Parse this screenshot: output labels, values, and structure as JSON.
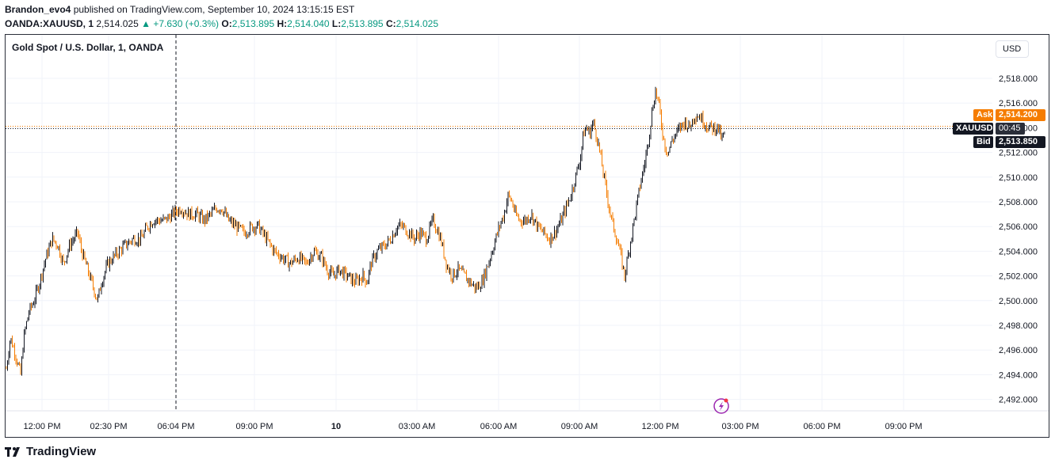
{
  "header": {
    "publisher": "Brandon_evo4",
    "published_text": " published on TradingView.com, September 10, 2024 13:15:15 EST",
    "symbol": "OANDA:XAUUSD, 1",
    "last": "2,514.025",
    "change": "+7.630 (+0.3%)",
    "o_label": "O:",
    "o": "2,513.895",
    "h_label": "H:",
    "h": "2,514.040",
    "l_label": "L:",
    "l": "2,513.895",
    "c_label": "C:",
    "c": "2,514.025"
  },
  "chart_title": "Gold Spot / U.S. Dollar, 1, OANDA",
  "currency_button": "USD",
  "tags": {
    "ask_label": "Ask",
    "ask_value": "2,514.200",
    "symbol_label": "XAUUSD",
    "countdown": "00:45",
    "bid_label": "Bid",
    "bid_value": "2,513.850"
  },
  "colors": {
    "up_candle": "#131722",
    "down_candle": "#f57c00",
    "ask": "#f57c00",
    "bid": "#131722",
    "grid": "#f0f3fa",
    "positive_change": "#089981"
  },
  "logo_text": "TradingView",
  "chart_data": {
    "type": "candlestick",
    "ylim": [
      2491,
      2519
    ],
    "y_ticks": [
      2492,
      2494,
      2496,
      2498,
      2500,
      2502,
      2504,
      2506,
      2508,
      2510,
      2512,
      2514,
      2516,
      2518
    ],
    "y_tick_labels": [
      "2,492.000",
      "2,494.000",
      "2,496.000",
      "2,498.000",
      "2,500.000",
      "2,502.000",
      "2,504.000",
      "2,506.000",
      "2,508.000",
      "2,510.000",
      "2,512.000",
      "2,514.000",
      "2,516.000",
      "2,518.000"
    ],
    "x_tick_labels": [
      "12:00 PM",
      "02:30 PM",
      "06:04 PM",
      "09:00 PM",
      "10",
      "03:00 AM",
      "06:00 AM",
      "09:00 AM",
      "12:00 PM",
      "03:00 PM",
      "06:00 PM",
      "09:00 PM"
    ],
    "crosshair_time": "06:04 PM",
    "current_price_line": 2514.025,
    "path": [
      [
        0,
        2494.5
      ],
      [
        5,
        2497
      ],
      [
        10,
        2496
      ],
      [
        18,
        2494
      ],
      [
        22,
        2497
      ],
      [
        28,
        2499
      ],
      [
        35,
        2500
      ],
      [
        42,
        2501.5
      ],
      [
        50,
        2503.5
      ],
      [
        58,
        2505
      ],
      [
        65,
        2504.5
      ],
      [
        72,
        2503
      ],
      [
        80,
        2504.5
      ],
      [
        90,
        2505.5
      ],
      [
        95,
        2504
      ],
      [
        100,
        2503
      ],
      [
        105,
        2502
      ],
      [
        110,
        2501
      ],
      [
        115,
        2500
      ],
      [
        120,
        2501.5
      ],
      [
        128,
        2503
      ],
      [
        135,
        2503.5
      ],
      [
        142,
        2504
      ],
      [
        150,
        2504.5
      ],
      [
        160,
        2505
      ],
      [
        170,
        2505
      ],
      [
        178,
        2506
      ],
      [
        185,
        2506.5
      ],
      [
        192,
        2506.5
      ],
      [
        200,
        2506.5
      ],
      [
        210,
        2507
      ],
      [
        220,
        2507.5
      ],
      [
        230,
        2507
      ],
      [
        240,
        2507
      ],
      [
        250,
        2506.5
      ],
      [
        258,
        2507
      ],
      [
        265,
        2507.5
      ],
      [
        272,
        2507.5
      ],
      [
        280,
        2506.5
      ],
      [
        290,
        2506
      ],
      [
        300,
        2505.5
      ],
      [
        310,
        2506
      ],
      [
        318,
        2506
      ],
      [
        328,
        2505
      ],
      [
        338,
        2504
      ],
      [
        348,
        2503.5
      ],
      [
        358,
        2503
      ],
      [
        368,
        2503.5
      ],
      [
        378,
        2503
      ],
      [
        388,
        2504
      ],
      [
        398,
        2503.5
      ],
      [
        405,
        2502.5
      ],
      [
        412,
        2502
      ],
      [
        420,
        2502.5
      ],
      [
        430,
        2502
      ],
      [
        440,
        2501.5
      ],
      [
        450,
        2502
      ],
      [
        455,
        2501.5
      ],
      [
        460,
        2503
      ],
      [
        468,
        2504
      ],
      [
        478,
        2504.5
      ],
      [
        485,
        2505
      ],
      [
        493,
        2506
      ],
      [
        500,
        2506
      ],
      [
        508,
        2505.5
      ],
      [
        515,
        2505
      ],
      [
        522,
        2505.5
      ],
      [
        530,
        2505
      ],
      [
        538,
        2506.5
      ],
      [
        542,
        2506
      ],
      [
        548,
        2505
      ],
      [
        555,
        2503
      ],
      [
        562,
        2502
      ],
      [
        570,
        2502.5
      ],
      [
        578,
        2502
      ],
      [
        585,
        2501.5
      ],
      [
        592,
        2501
      ],
      [
        600,
        2501.5
      ],
      [
        608,
        2503
      ],
      [
        615,
        2504.5
      ],
      [
        622,
        2506
      ],
      [
        628,
        2507
      ],
      [
        633,
        2508.5
      ],
      [
        638,
        2508
      ],
      [
        642,
        2507
      ],
      [
        648,
        2506.5
      ],
      [
        655,
        2506.5
      ],
      [
        662,
        2507
      ],
      [
        670,
        2506
      ],
      [
        678,
        2505.5
      ],
      [
        685,
        2505
      ],
      [
        692,
        2505.5
      ],
      [
        700,
        2506.5
      ],
      [
        706,
        2507.5
      ],
      [
        712,
        2508.5
      ],
      [
        718,
        2510
      ],
      [
        724,
        2511.5
      ],
      [
        728,
        2513.5
      ],
      [
        732,
        2514
      ],
      [
        736,
        2513.5
      ],
      [
        740,
        2514.5
      ],
      [
        746,
        2513
      ],
      [
        750,
        2511.5
      ],
      [
        754,
        2510
      ],
      [
        758,
        2508.5
      ],
      [
        762,
        2507
      ],
      [
        766,
        2506
      ],
      [
        770,
        2505
      ],
      [
        774,
        2504
      ],
      [
        777,
        2503
      ],
      [
        780,
        2502
      ],
      [
        784,
        2503.5
      ],
      [
        788,
        2505
      ],
      [
        792,
        2506.5
      ],
      [
        796,
        2508
      ],
      [
        800,
        2509.5
      ],
      [
        805,
        2511
      ],
      [
        810,
        2513
      ],
      [
        815,
        2515.5
      ],
      [
        819,
        2517
      ],
      [
        823,
        2516
      ],
      [
        827,
        2514
      ],
      [
        831,
        2512.5
      ],
      [
        835,
        2512
      ],
      [
        840,
        2513
      ],
      [
        845,
        2513.5
      ],
      [
        850,
        2514
      ],
      [
        856,
        2514.5
      ],
      [
        862,
        2514
      ],
      [
        868,
        2515
      ],
      [
        874,
        2515
      ],
      [
        880,
        2514.5
      ],
      [
        886,
        2514
      ],
      [
        892,
        2514
      ],
      [
        898,
        2514
      ],
      [
        903,
        2513
      ],
      [
        907,
        2513.8
      ]
    ]
  }
}
